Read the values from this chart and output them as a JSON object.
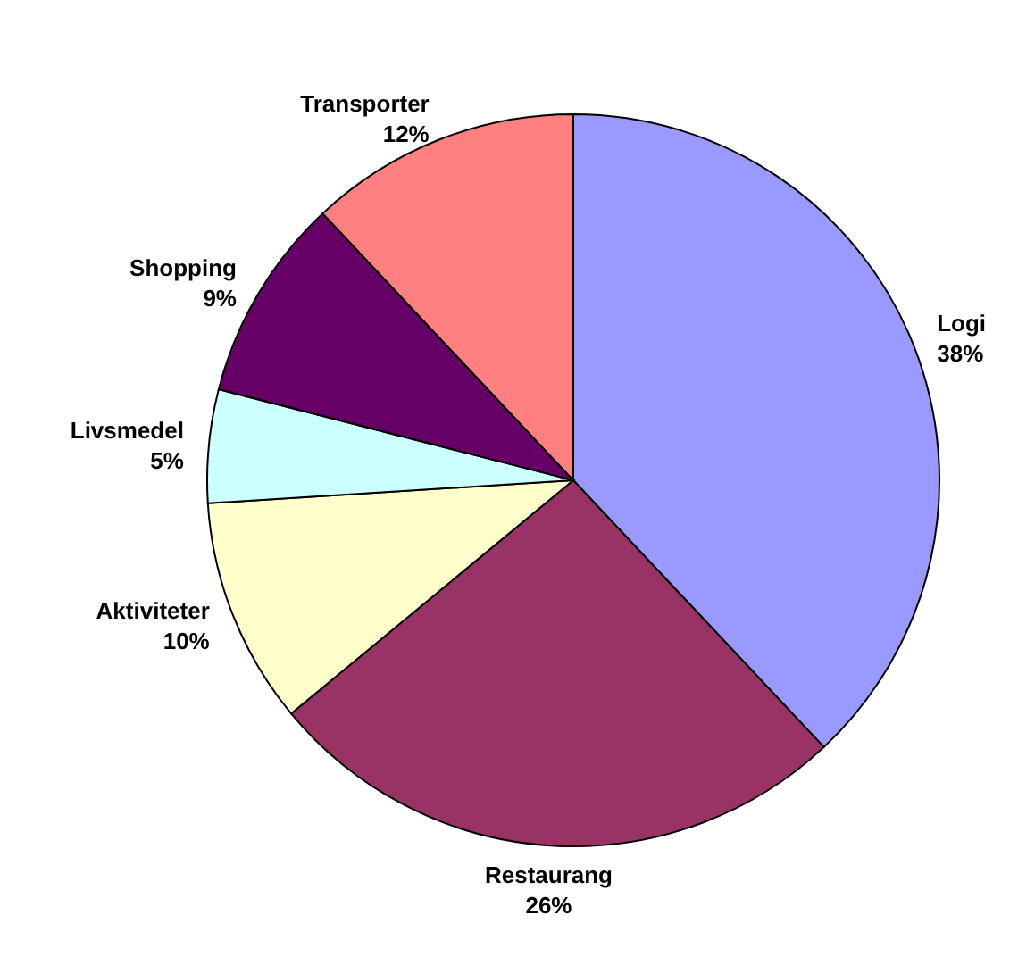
{
  "chart_data": {
    "type": "pie",
    "categories": [
      "Logi",
      "Restaurang",
      "Aktiviteter",
      "Livsmedel",
      "Shopping",
      "Transporter"
    ],
    "values": [
      38,
      26,
      10,
      5,
      9,
      12
    ],
    "value_labels": [
      "38%",
      "26%",
      "10%",
      "5%",
      "9%",
      "12%"
    ],
    "colors": [
      "#9999ff",
      "#993366",
      "#ffffcc",
      "#ccffff",
      "#660066",
      "#ff8080"
    ],
    "legend": false
  }
}
